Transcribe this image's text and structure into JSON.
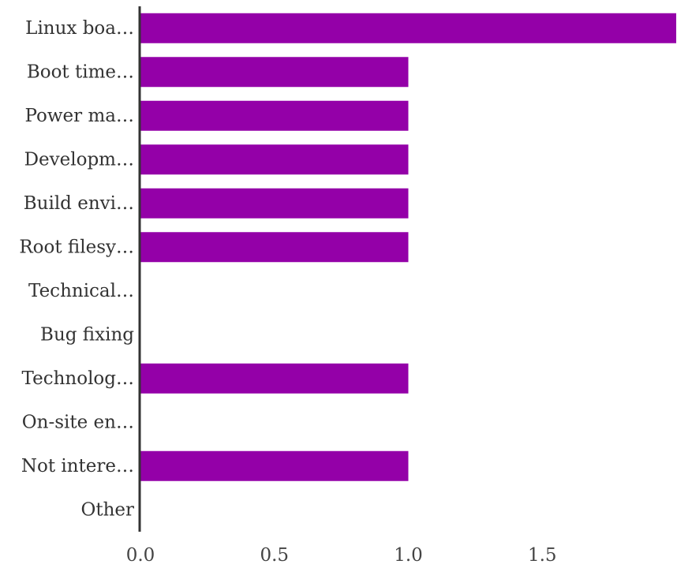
{
  "chart_data": {
    "type": "bar",
    "orientation": "horizontal",
    "categories": [
      "Linux boa…",
      "Boot time…",
      "Power ma…",
      "Developm…",
      "Build envi…",
      "Root filesy…",
      "Technical…",
      "Bug fixing",
      "Technolog…",
      "On-site en…",
      "Not intere…",
      "Other"
    ],
    "values": [
      2,
      1,
      1,
      1,
      1,
      1,
      0,
      0,
      1,
      0,
      1,
      0
    ],
    "title": "",
    "xlabel": "",
    "ylabel": "",
    "xlim": [
      0,
      2
    ],
    "xticks": [
      "0.0",
      "0.5",
      "1.0",
      "1.5"
    ],
    "grid": false,
    "legend": "none",
    "colors": {
      "bar": "#9400a8",
      "axis": "#333333",
      "text": "#333333"
    }
  }
}
